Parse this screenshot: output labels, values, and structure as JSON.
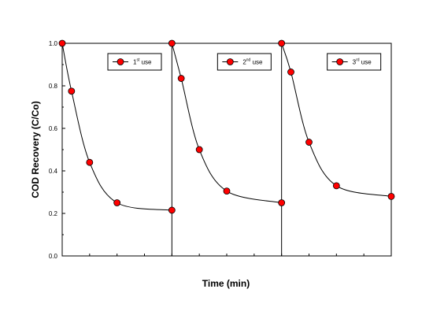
{
  "chart_data": {
    "type": "line",
    "ylabel": "COD Recovery (C/Co)",
    "xlabel": "Time (min)",
    "ylim": [
      0,
      1
    ],
    "y_ticks": [
      "0.0",
      "0.2",
      "0.4",
      "0.6",
      "0.8",
      "1.0"
    ],
    "grid": false,
    "legend_position": "top-right",
    "marker_color": "#ff0000",
    "line_color": "#000000",
    "panels": [
      {
        "legend": {
          "base": "1",
          "sup": "st",
          "text": " use"
        },
        "y": [
          1.0,
          0.775,
          0.44,
          0.25,
          0.215
        ]
      },
      {
        "legend": {
          "base": "2",
          "sup": "nd",
          "text": " use"
        },
        "y": [
          1.0,
          0.835,
          0.5,
          0.305,
          0.25
        ]
      },
      {
        "legend": {
          "base": "3",
          "sup": "rd",
          "text": " use"
        },
        "y": [
          1.0,
          0.865,
          0.535,
          0.33,
          0.28
        ]
      }
    ]
  }
}
